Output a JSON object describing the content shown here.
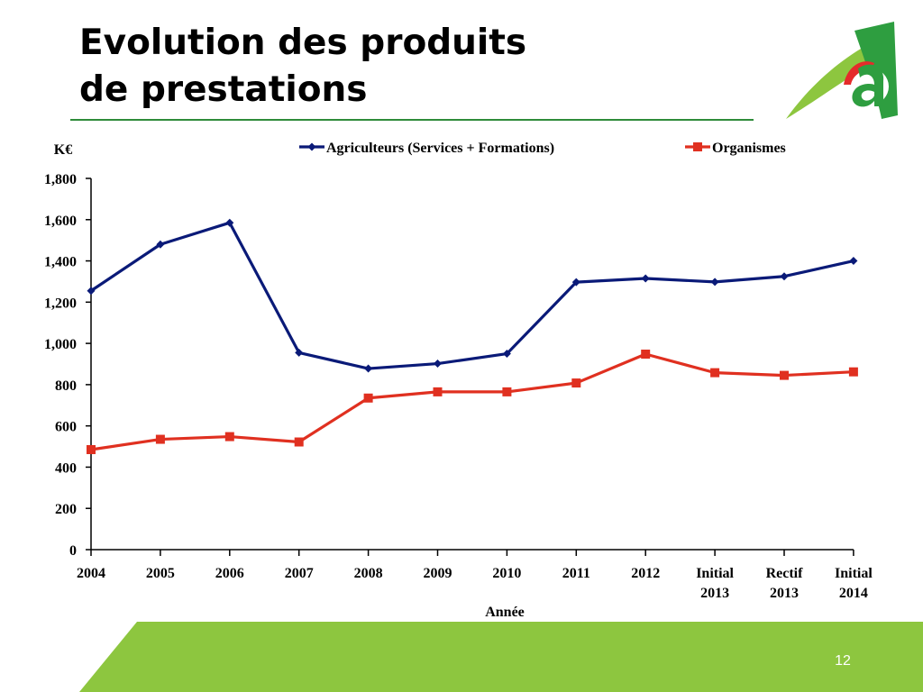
{
  "slide": {
    "title_line1": "Evolution des produits",
    "title_line2": "de prestations",
    "page_number": "12"
  },
  "colors": {
    "green": "#8dc63f",
    "dark_green": "#2e8b3a",
    "series1": "#0a1a78",
    "series2": "#e03020"
  },
  "chart_data": {
    "type": "line",
    "categories": [
      [
        "2004"
      ],
      [
        "2005"
      ],
      [
        "2006"
      ],
      [
        "2007"
      ],
      [
        "2008"
      ],
      [
        "2009"
      ],
      [
        "2010"
      ],
      [
        "2011"
      ],
      [
        "2012"
      ],
      [
        "Initial",
        "2013"
      ],
      [
        "Rectif",
        "2013"
      ],
      [
        "Initial",
        "2014"
      ]
    ],
    "series": [
      {
        "name": "Agriculteurs (Services + Formations)",
        "color": "#0a1a78",
        "marker": "diamond",
        "values": [
          1255,
          1480,
          1585,
          955,
          878,
          902,
          950,
          1297,
          1315,
          1298,
          1325,
          1400
        ]
      },
      {
        "name": "Organismes",
        "color": "#e03020",
        "marker": "square",
        "values": [
          485,
          535,
          548,
          522,
          735,
          765,
          765,
          808,
          948,
          858,
          845,
          862
        ]
      }
    ],
    "ylabel": "K€",
    "xlabel": "Année",
    "ylim": [
      0,
      1800
    ],
    "yticks": [
      "0",
      "200",
      "400",
      "600",
      "800",
      "1,000",
      "1,200",
      "1,400",
      "1,600",
      "1,800"
    ],
    "grid": false,
    "legend_position": "top"
  }
}
